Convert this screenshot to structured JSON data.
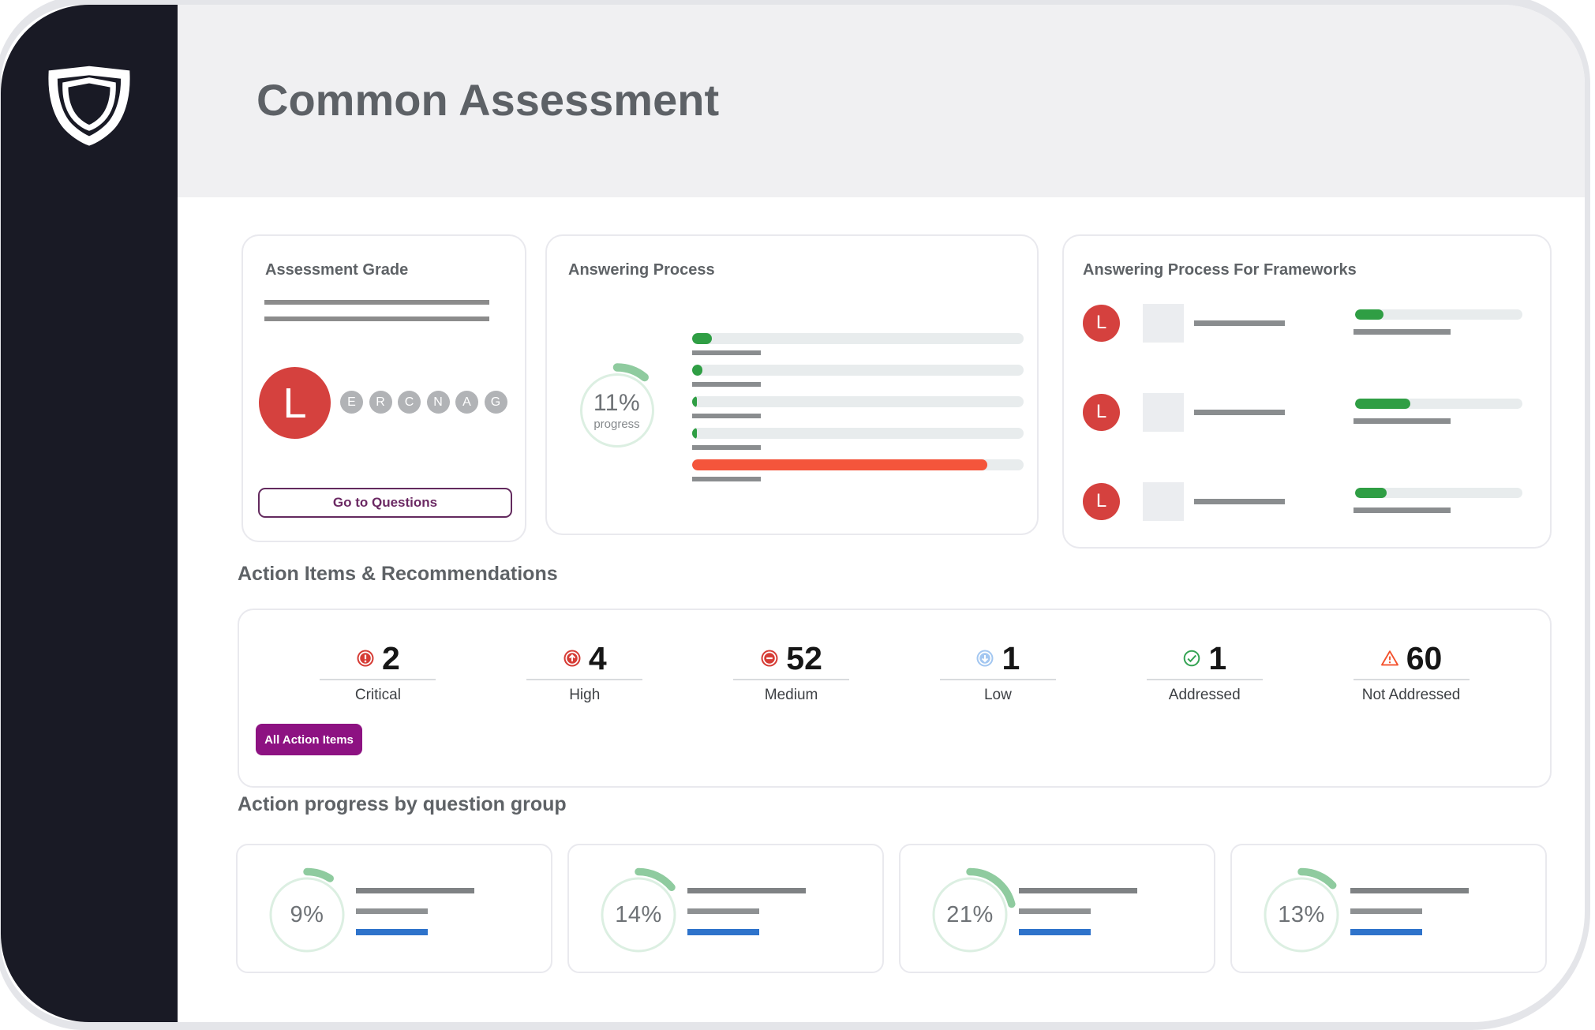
{
  "header": {
    "title": "Common Assessment"
  },
  "sidebar": {
    "logo_icon": "shield-icon"
  },
  "grade_card": {
    "title": "Assessment Grade",
    "current_grade": "L",
    "grade_scale": [
      "E",
      "R",
      "C",
      "N",
      "A",
      "G"
    ],
    "button_label": "Go to Questions"
  },
  "answering_card": {
    "title": "Answering Process",
    "progress_pct": 11,
    "progress_pct_label": "11%",
    "progress_sub_label": "progress",
    "bars": [
      {
        "pct": 6,
        "color": "#2f9e44"
      },
      {
        "pct": 3,
        "color": "#2f9e44"
      },
      {
        "pct": 1.5,
        "color": "#2f9e44"
      },
      {
        "pct": 1.5,
        "color": "#2f9e44"
      },
      {
        "pct": 89,
        "color": "#f4553b"
      }
    ]
  },
  "frameworks_card": {
    "title": "Answering Process For Frameworks",
    "rows": [
      {
        "badge": "L",
        "pct": 17
      },
      {
        "badge": "L",
        "pct": 33
      },
      {
        "badge": "L",
        "pct": 19
      }
    ]
  },
  "action_items": {
    "heading": "Action Items & Recommendations",
    "stats": [
      {
        "label": "Critical",
        "value": "2",
        "icon": "critical-icon",
        "color": "#d63c35"
      },
      {
        "label": "High",
        "value": "4",
        "icon": "arrow-up-icon",
        "color": "#d63c35"
      },
      {
        "label": "Medium",
        "value": "52",
        "icon": "minus-icon",
        "color": "#d63c35"
      },
      {
        "label": "Low",
        "value": "1",
        "icon": "arrow-down-icon",
        "color": "#a3c7f1"
      },
      {
        "label": "Addressed",
        "value": "1",
        "icon": "check-circle-icon",
        "color": "#34a353"
      },
      {
        "label": "Not Addressed",
        "value": "60",
        "icon": "warning-triangle-icon",
        "color": "#f4512c"
      }
    ],
    "button_label": "All Action Items"
  },
  "question_groups": {
    "heading": "Action progress by question group",
    "groups": [
      {
        "pct": 9,
        "pct_label": "9%"
      },
      {
        "pct": 14,
        "pct_label": "14%"
      },
      {
        "pct": 21,
        "pct_label": "21%"
      },
      {
        "pct": 13,
        "pct_label": "13%"
      }
    ]
  },
  "colors": {
    "sidebar_bg": "#191a25",
    "header_bg": "#f0f0f2",
    "accent_purple": "#8d1282",
    "outline_purple": "#632a5e",
    "green_bar": "#2f9e44",
    "red_bar": "#f4553b",
    "red_badge": "#d5413e",
    "blue_bar": "#2e73cb",
    "ring_track": "#dcefe2",
    "ring_arc": "#8fcb9f"
  }
}
